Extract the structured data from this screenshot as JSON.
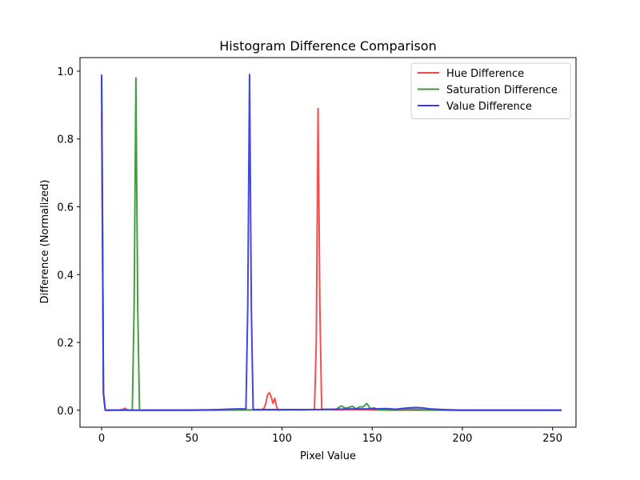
{
  "chart_data": {
    "type": "line",
    "title": "Histogram Difference Comparison",
    "xlabel": "Pixel Value",
    "ylabel": "Difference (Normalized)",
    "xlim": [
      -12,
      263
    ],
    "ylim": [
      -0.05,
      1.04
    ],
    "xticks": [
      0,
      50,
      100,
      150,
      200,
      250
    ],
    "yticks": [
      0.0,
      0.2,
      0.4,
      0.6,
      0.8,
      1.0
    ],
    "xtick_labels": [
      "0",
      "50",
      "100",
      "150",
      "200",
      "250"
    ],
    "ytick_labels": [
      "0.0",
      "0.2",
      "0.4",
      "0.6",
      "0.8",
      "1.0"
    ],
    "grid": false,
    "legend_position": "top-right",
    "series": [
      {
        "name": "Hue Difference",
        "color": "#f04848",
        "points": [
          [
            0,
            0.88
          ],
          [
            1,
            0.05
          ],
          [
            2,
            0.0
          ],
          [
            10,
            0.001
          ],
          [
            12,
            0.003
          ],
          [
            13,
            0.006
          ],
          [
            14,
            0.002
          ],
          [
            16,
            0.0
          ],
          [
            60,
            0.0
          ],
          [
            88,
            0.001
          ],
          [
            90,
            0.005
          ],
          [
            91,
            0.02
          ],
          [
            92,
            0.045
          ],
          [
            93,
            0.052
          ],
          [
            94,
            0.04
          ],
          [
            95,
            0.02
          ],
          [
            96,
            0.035
          ],
          [
            97,
            0.01
          ],
          [
            98,
            0.0
          ],
          [
            100,
            0.002
          ],
          [
            110,
            0.001
          ],
          [
            118,
            0.002
          ],
          [
            119,
            0.2
          ],
          [
            120,
            0.89
          ],
          [
            121,
            0.3
          ],
          [
            122,
            0.003
          ],
          [
            130,
            0.001
          ],
          [
            140,
            0.002
          ],
          [
            150,
            0.001
          ],
          [
            160,
            0.0
          ],
          [
            200,
            0.0
          ],
          [
            255,
            0.0
          ]
        ]
      },
      {
        "name": "Saturation Difference",
        "color": "#3a9a3a",
        "points": [
          [
            0,
            0.98
          ],
          [
            1,
            0.05
          ],
          [
            2,
            0.0
          ],
          [
            17,
            0.001
          ],
          [
            18,
            0.3
          ],
          [
            19,
            0.98
          ],
          [
            20,
            0.3
          ],
          [
            21,
            0.0
          ],
          [
            60,
            0.001
          ],
          [
            100,
            0.001
          ],
          [
            125,
            0.002
          ],
          [
            130,
            0.003
          ],
          [
            133,
            0.013
          ],
          [
            135,
            0.006
          ],
          [
            137,
            0.008
          ],
          [
            139,
            0.012
          ],
          [
            141,
            0.004
          ],
          [
            143,
            0.01
          ],
          [
            145,
            0.01
          ],
          [
            147,
            0.02
          ],
          [
            149,
            0.005
          ],
          [
            151,
            0.007
          ],
          [
            153,
            0.002
          ],
          [
            160,
            0.002
          ],
          [
            170,
            0.003
          ],
          [
            180,
            0.002
          ],
          [
            195,
            0.0
          ],
          [
            255,
            0.0
          ]
        ]
      },
      {
        "name": "Value Difference",
        "color": "#3a3ae8",
        "points": [
          [
            0,
            0.99
          ],
          [
            1,
            0.05
          ],
          [
            2,
            0.0
          ],
          [
            30,
            0.0
          ],
          [
            50,
            0.0
          ],
          [
            65,
            0.002
          ],
          [
            70,
            0.003
          ],
          [
            75,
            0.004
          ],
          [
            80,
            0.004
          ],
          [
            81,
            0.3
          ],
          [
            82,
            0.99
          ],
          [
            83,
            0.3
          ],
          [
            84,
            0.002
          ],
          [
            90,
            0.002
          ],
          [
            100,
            0.002
          ],
          [
            110,
            0.002
          ],
          [
            120,
            0.002
          ],
          [
            130,
            0.003
          ],
          [
            140,
            0.004
          ],
          [
            150,
            0.004
          ],
          [
            158,
            0.005
          ],
          [
            163,
            0.003
          ],
          [
            170,
            0.007
          ],
          [
            174,
            0.008
          ],
          [
            178,
            0.007
          ],
          [
            182,
            0.004
          ],
          [
            190,
            0.002
          ],
          [
            200,
            0.0
          ],
          [
            255,
            0.0
          ]
        ]
      }
    ]
  }
}
